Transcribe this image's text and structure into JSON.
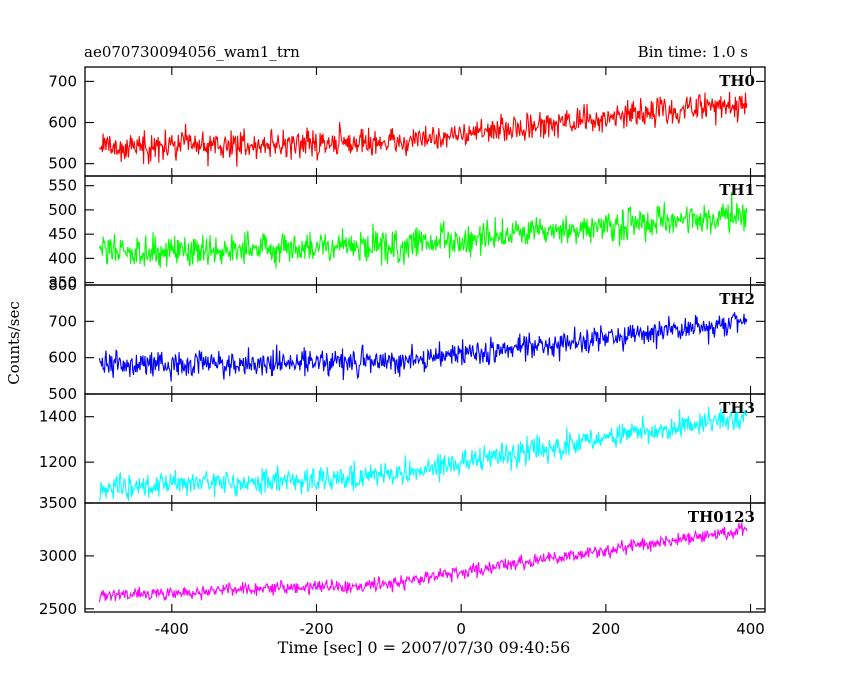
{
  "header": {
    "title": "ae070730094056_wam1_trn",
    "bin_time": "Bin time: 1.0 s"
  },
  "chart_data": {
    "type": "line",
    "title": "ae070730094056_wam1_trn",
    "subtitle": "Bin time: 1.0 s",
    "xlabel": "Time [sec] 0 = 2007/07/30 09:40:56",
    "ylabel": "Counts/sec",
    "xlim": [
      -520,
      420
    ],
    "x_ticks": [
      -400,
      -200,
      0,
      200,
      400
    ],
    "x_start": -500,
    "x_end": 395,
    "x_step": 1,
    "grid": false,
    "panels": [
      {
        "name": "TH0",
        "color": "#ff0000",
        "ylim": [
          470,
          735
        ],
        "y_ticks": [
          500,
          600,
          700
        ],
        "trend": [
          {
            "x": -500,
            "y": 540
          },
          {
            "x": -100,
            "y": 552
          },
          {
            "x": 100,
            "y": 590
          },
          {
            "x": 395,
            "y": 650
          }
        ],
        "noise_sd": 24
      },
      {
        "name": "TH1",
        "color": "#00ff00",
        "ylim": [
          345,
          570
        ],
        "y_ticks": [
          350,
          400,
          450,
          500,
          550
        ],
        "trend": [
          {
            "x": -500,
            "y": 415
          },
          {
            "x": -100,
            "y": 425
          },
          {
            "x": 100,
            "y": 450
          },
          {
            "x": 395,
            "y": 490
          }
        ],
        "noise_sd": 24
      },
      {
        "name": "TH2",
        "color": "#0000ff",
        "ylim": [
          500,
          800
        ],
        "y_ticks": [
          500,
          600,
          700,
          800
        ],
        "trend": [
          {
            "x": -500,
            "y": 580
          },
          {
            "x": -100,
            "y": 590
          },
          {
            "x": 100,
            "y": 630
          },
          {
            "x": 395,
            "y": 700
          }
        ],
        "noise_sd": 25
      },
      {
        "name": "TH3",
        "color": "#00ffff",
        "ylim": [
          1020,
          1500
        ],
        "y_ticks": [
          1200,
          1400
        ],
        "trend": [
          {
            "x": -500,
            "y": 1085
          },
          {
            "x": -100,
            "y": 1140
          },
          {
            "x": 100,
            "y": 1250
          },
          {
            "x": 395,
            "y": 1410
          }
        ],
        "noise_sd": 38
      },
      {
        "name": "TH0123",
        "color": "#ff00ff",
        "ylim": [
          2470,
          3500
        ],
        "y_ticks": [
          2500,
          3000,
          3500
        ],
        "trend": [
          {
            "x": -500,
            "y": 2620
          },
          {
            "x": -100,
            "y": 2740
          },
          {
            "x": 100,
            "y": 2950
          },
          {
            "x": 395,
            "y": 3250
          }
        ],
        "noise_sd": 45
      }
    ]
  }
}
